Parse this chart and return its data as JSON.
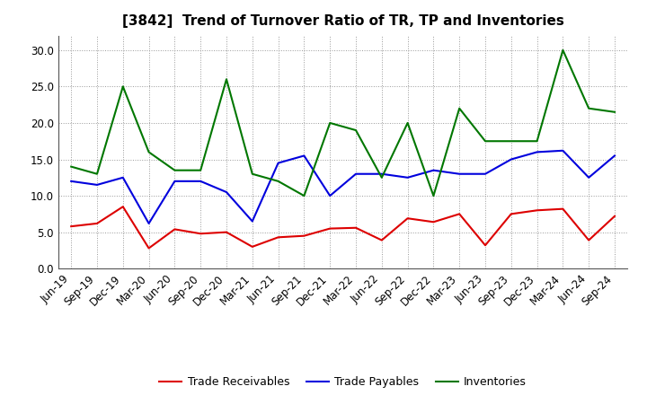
{
  "title": "[3842]  Trend of Turnover Ratio of TR, TP and Inventories",
  "x_labels": [
    "Jun-19",
    "Sep-19",
    "Dec-19",
    "Mar-20",
    "Jun-20",
    "Sep-20",
    "Dec-20",
    "Mar-21",
    "Jun-21",
    "Sep-21",
    "Dec-21",
    "Mar-22",
    "Jun-22",
    "Sep-22",
    "Dec-22",
    "Mar-23",
    "Jun-23",
    "Sep-23",
    "Dec-23",
    "Mar-24",
    "Jun-24",
    "Sep-24"
  ],
  "trade_receivables": [
    5.8,
    6.2,
    8.5,
    2.8,
    5.4,
    4.8,
    5.0,
    3.0,
    4.3,
    4.5,
    5.5,
    5.6,
    3.9,
    6.9,
    6.4,
    7.5,
    3.2,
    7.5,
    8.0,
    8.2,
    3.9,
    7.2
  ],
  "trade_payables": [
    12.0,
    11.5,
    12.5,
    6.2,
    12.0,
    12.0,
    10.5,
    6.5,
    14.5,
    15.5,
    10.0,
    13.0,
    13.0,
    12.5,
    13.5,
    13.0,
    13.0,
    15.0,
    16.0,
    16.2,
    12.5,
    15.5
  ],
  "inventories": [
    14.0,
    13.0,
    25.0,
    16.0,
    13.5,
    13.5,
    26.0,
    13.0,
    12.0,
    10.0,
    20.0,
    19.0,
    12.5,
    20.0,
    10.0,
    22.0,
    17.5,
    17.5,
    17.5,
    30.0,
    22.0,
    21.5
  ],
  "color_tr": "#dd0000",
  "color_tp": "#0000dd",
  "color_inv": "#007700",
  "ylim": [
    0.0,
    32.0
  ],
  "yticks": [
    0.0,
    5.0,
    10.0,
    15.0,
    20.0,
    25.0,
    30.0
  ],
  "legend_labels": [
    "Trade Receivables",
    "Trade Payables",
    "Inventories"
  ],
  "background_color": "#ffffff",
  "grid_color": "#999999",
  "title_fontsize": 11,
  "tick_fontsize": 8.5,
  "linewidth": 1.5
}
